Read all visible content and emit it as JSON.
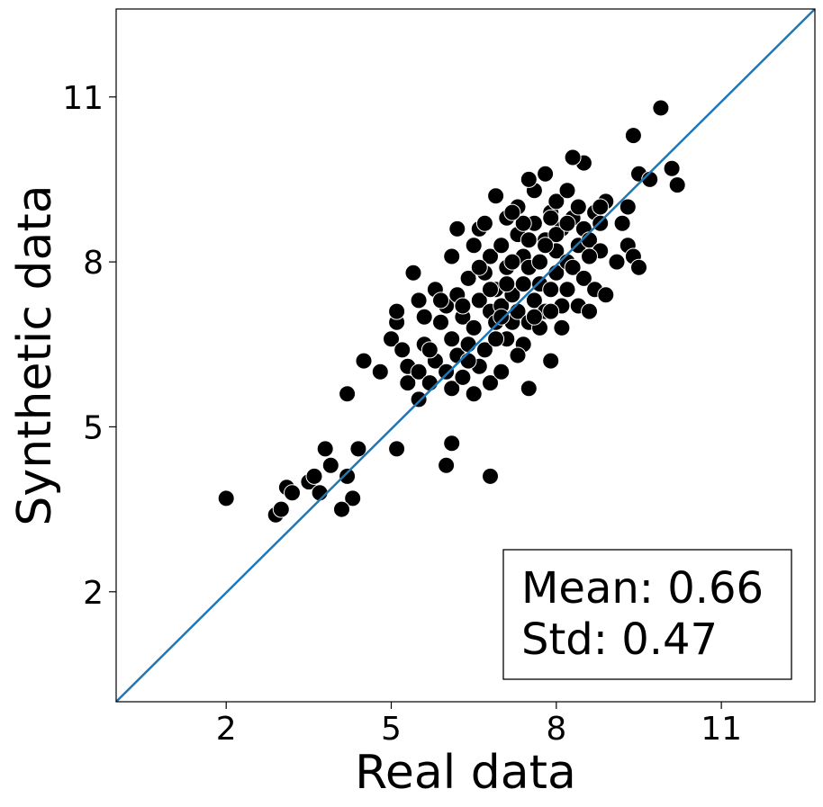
{
  "chart_data": {
    "type": "scatter",
    "title": "",
    "xlabel": "Real data",
    "ylabel": "Synthetic data",
    "xlim": [
      0.0,
      12.7
    ],
    "ylim": [
      0.0,
      12.6
    ],
    "xticks": [
      2,
      5,
      8,
      11
    ],
    "yticks": [
      2,
      5,
      8,
      11
    ],
    "identity_line": {
      "from": [
        0.0,
        0.0
      ],
      "to": [
        12.7,
        12.6
      ],
      "color": "#1f77b4"
    },
    "marker_color": "#000000",
    "marker_edge_color": "#ffffff",
    "stats_box": {
      "line1": "Mean: 0.66",
      "line2": "Std: 0.47",
      "location": "lower-right"
    },
    "points": [
      [
        2.0,
        3.7
      ],
      [
        2.9,
        3.4
      ],
      [
        3.0,
        3.5
      ],
      [
        3.1,
        3.9
      ],
      [
        3.2,
        3.8
      ],
      [
        3.5,
        4.0
      ],
      [
        3.6,
        4.1
      ],
      [
        3.7,
        3.8
      ],
      [
        3.8,
        4.6
      ],
      [
        3.9,
        4.3
      ],
      [
        4.2,
        4.1
      ],
      [
        4.3,
        3.7
      ],
      [
        4.4,
        4.6
      ],
      [
        4.1,
        3.5
      ],
      [
        4.2,
        5.6
      ],
      [
        4.5,
        6.2
      ],
      [
        4.8,
        6.0
      ],
      [
        5.1,
        4.6
      ],
      [
        6.0,
        4.3
      ],
      [
        6.1,
        4.7
      ],
      [
        6.8,
        4.1
      ],
      [
        5.0,
        6.6
      ],
      [
        5.1,
        6.9
      ],
      [
        5.1,
        7.1
      ],
      [
        5.2,
        6.4
      ],
      [
        5.3,
        6.1
      ],
      [
        5.3,
        5.8
      ],
      [
        5.4,
        7.8
      ],
      [
        5.5,
        5.5
      ],
      [
        5.5,
        6.0
      ],
      [
        5.5,
        7.3
      ],
      [
        5.6,
        7.0
      ],
      [
        5.6,
        6.5
      ],
      [
        5.7,
        5.8
      ],
      [
        5.8,
        6.2
      ],
      [
        5.8,
        7.5
      ],
      [
        5.9,
        6.9
      ],
      [
        6.0,
        6.0
      ],
      [
        6.0,
        7.2
      ],
      [
        6.1,
        5.7
      ],
      [
        6.1,
        6.6
      ],
      [
        6.1,
        8.1
      ],
      [
        6.2,
        7.4
      ],
      [
        6.2,
        6.3
      ],
      [
        6.3,
        5.9
      ],
      [
        6.3,
        7.0
      ],
      [
        6.4,
        7.7
      ],
      [
        6.4,
        6.5
      ],
      [
        6.5,
        5.6
      ],
      [
        6.5,
        6.8
      ],
      [
        6.5,
        8.3
      ],
      [
        6.6,
        6.1
      ],
      [
        6.6,
        7.3
      ],
      [
        6.6,
        8.6
      ],
      [
        6.7,
        7.8
      ],
      [
        6.7,
        6.4
      ],
      [
        6.8,
        7.1
      ],
      [
        6.8,
        5.8
      ],
      [
        6.8,
        8.1
      ],
      [
        6.9,
        6.9
      ],
      [
        6.9,
        7.5
      ],
      [
        6.9,
        9.2
      ],
      [
        7.0,
        6.0
      ],
      [
        7.0,
        7.2
      ],
      [
        7.0,
        8.3
      ],
      [
        7.1,
        6.6
      ],
      [
        7.1,
        7.9
      ],
      [
        7.1,
        8.8
      ],
      [
        7.2,
        7.4
      ],
      [
        7.2,
        6.9
      ],
      [
        7.3,
        8.5
      ],
      [
        7.3,
        7.1
      ],
      [
        7.3,
        9.0
      ],
      [
        7.4,
        6.5
      ],
      [
        7.4,
        7.6
      ],
      [
        7.4,
        8.1
      ],
      [
        7.5,
        7.9
      ],
      [
        7.5,
        6.9
      ],
      [
        7.5,
        5.7
      ],
      [
        7.6,
        8.7
      ],
      [
        7.6,
        7.3
      ],
      [
        7.6,
        9.3
      ],
      [
        7.7,
        8.0
      ],
      [
        7.7,
        6.8
      ],
      [
        7.7,
        7.6
      ],
      [
        7.8,
        8.4
      ],
      [
        7.8,
        7.1
      ],
      [
        7.8,
        9.6
      ],
      [
        7.9,
        8.9
      ],
      [
        7.9,
        7.5
      ],
      [
        7.9,
        6.2
      ],
      [
        8.0,
        8.2
      ],
      [
        8.0,
        7.8
      ],
      [
        8.0,
        9.1
      ],
      [
        8.1,
        7.2
      ],
      [
        8.1,
        8.6
      ],
      [
        8.1,
        6.8
      ],
      [
        8.2,
        8.0
      ],
      [
        8.2,
        9.3
      ],
      [
        8.2,
        7.5
      ],
      [
        8.3,
        8.8
      ],
      [
        8.3,
        7.9
      ],
      [
        8.4,
        8.3
      ],
      [
        8.4,
        7.2
      ],
      [
        8.4,
        9.0
      ],
      [
        8.5,
        8.6
      ],
      [
        8.5,
        7.7
      ],
      [
        8.5,
        9.8
      ],
      [
        8.6,
        7.1
      ],
      [
        8.6,
        8.4
      ],
      [
        8.7,
        8.9
      ],
      [
        8.7,
        7.5
      ],
      [
        8.8,
        8.7
      ],
      [
        8.8,
        8.2
      ],
      [
        8.9,
        9.1
      ],
      [
        8.9,
        7.4
      ],
      [
        9.1,
        8.0
      ],
      [
        9.2,
        8.7
      ],
      [
        9.3,
        9.0
      ],
      [
        9.3,
        8.3
      ],
      [
        9.4,
        8.1
      ],
      [
        9.4,
        10.3
      ],
      [
        9.5,
        7.9
      ],
      [
        9.5,
        9.6
      ],
      [
        9.7,
        9.5
      ],
      [
        9.9,
        10.8
      ],
      [
        10.1,
        9.7
      ],
      [
        10.2,
        9.4
      ],
      [
        8.3,
        9.9
      ],
      [
        7.0,
        7.0
      ],
      [
        6.4,
        6.2
      ],
      [
        7.2,
        8.0
      ],
      [
        7.6,
        7.0
      ],
      [
        6.2,
        8.6
      ],
      [
        5.7,
        6.4
      ],
      [
        6.9,
        6.6
      ],
      [
        7.3,
        6.3
      ],
      [
        8.0,
        8.5
      ],
      [
        7.8,
        8.3
      ],
      [
        6.6,
        7.9
      ],
      [
        7.4,
        8.7
      ],
      [
        7.1,
        7.6
      ],
      [
        6.3,
        7.2
      ],
      [
        5.9,
        7.3
      ],
      [
        8.6,
        8.1
      ],
      [
        7.9,
        8.8
      ],
      [
        7.5,
        8.4
      ],
      [
        7.2,
        8.9
      ],
      [
        6.8,
        7.5
      ],
      [
        6.7,
        8.7
      ],
      [
        7.5,
        9.5
      ],
      [
        8.2,
        8.7
      ],
      [
        7.9,
        7.1
      ],
      [
        8.8,
        9.0
      ]
    ]
  }
}
